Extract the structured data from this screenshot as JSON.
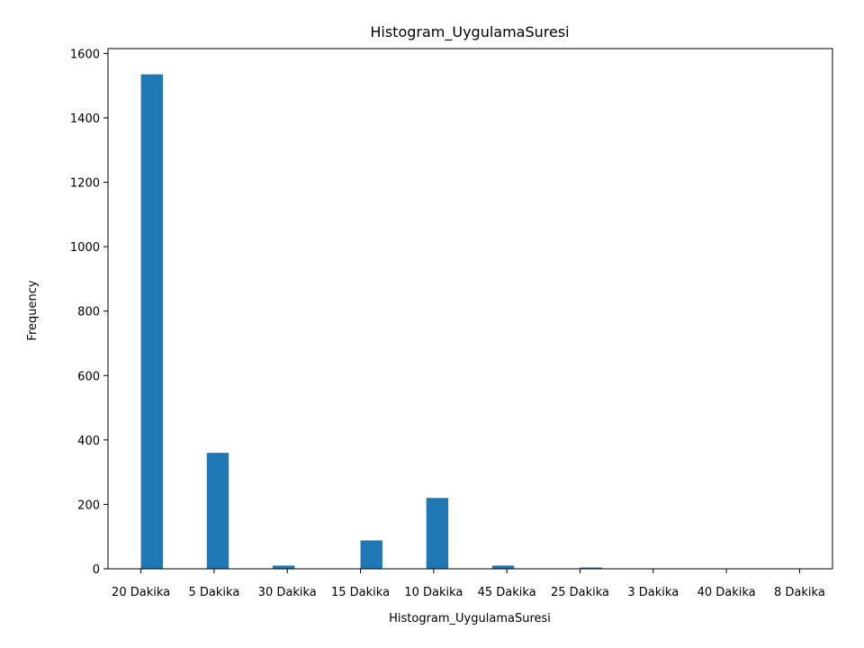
{
  "chart_data": {
    "type": "bar",
    "title": "Histogram_UygulamaSuresi",
    "xlabel": "Histogram_UygulamaSuresi",
    "ylabel": "Frequency",
    "ylim": [
      0,
      1615
    ],
    "yticks": [
      0,
      200,
      400,
      600,
      800,
      1000,
      1200,
      1400,
      1600
    ],
    "categories": [
      "20 Dakika",
      "5 Dakika",
      "30 Dakika",
      "15 Dakika",
      "10 Dakika",
      "45 Dakika",
      "25 Dakika",
      "3 Dakika",
      "40 Dakika",
      "8 Dakika"
    ],
    "bin_width": 0.3,
    "bars": [
      {
        "x": 0.15,
        "value": 1535
      },
      {
        "x": 1.05,
        "value": 360
      },
      {
        "x": 1.95,
        "value": 10
      },
      {
        "x": 2.85,
        "value": 0
      },
      {
        "x": 3.15,
        "value": 88
      },
      {
        "x": 4.05,
        "value": 220
      },
      {
        "x": 4.95,
        "value": 10
      },
      {
        "x": 6.15,
        "value": 4
      },
      {
        "x": 7.05,
        "value": 1
      },
      {
        "x": 7.95,
        "value": 1
      },
      {
        "x": 8.85,
        "value": 1
      }
    ],
    "xlim": [
      -0.45,
      9.45
    ],
    "bar_color": "#1f77b4"
  }
}
